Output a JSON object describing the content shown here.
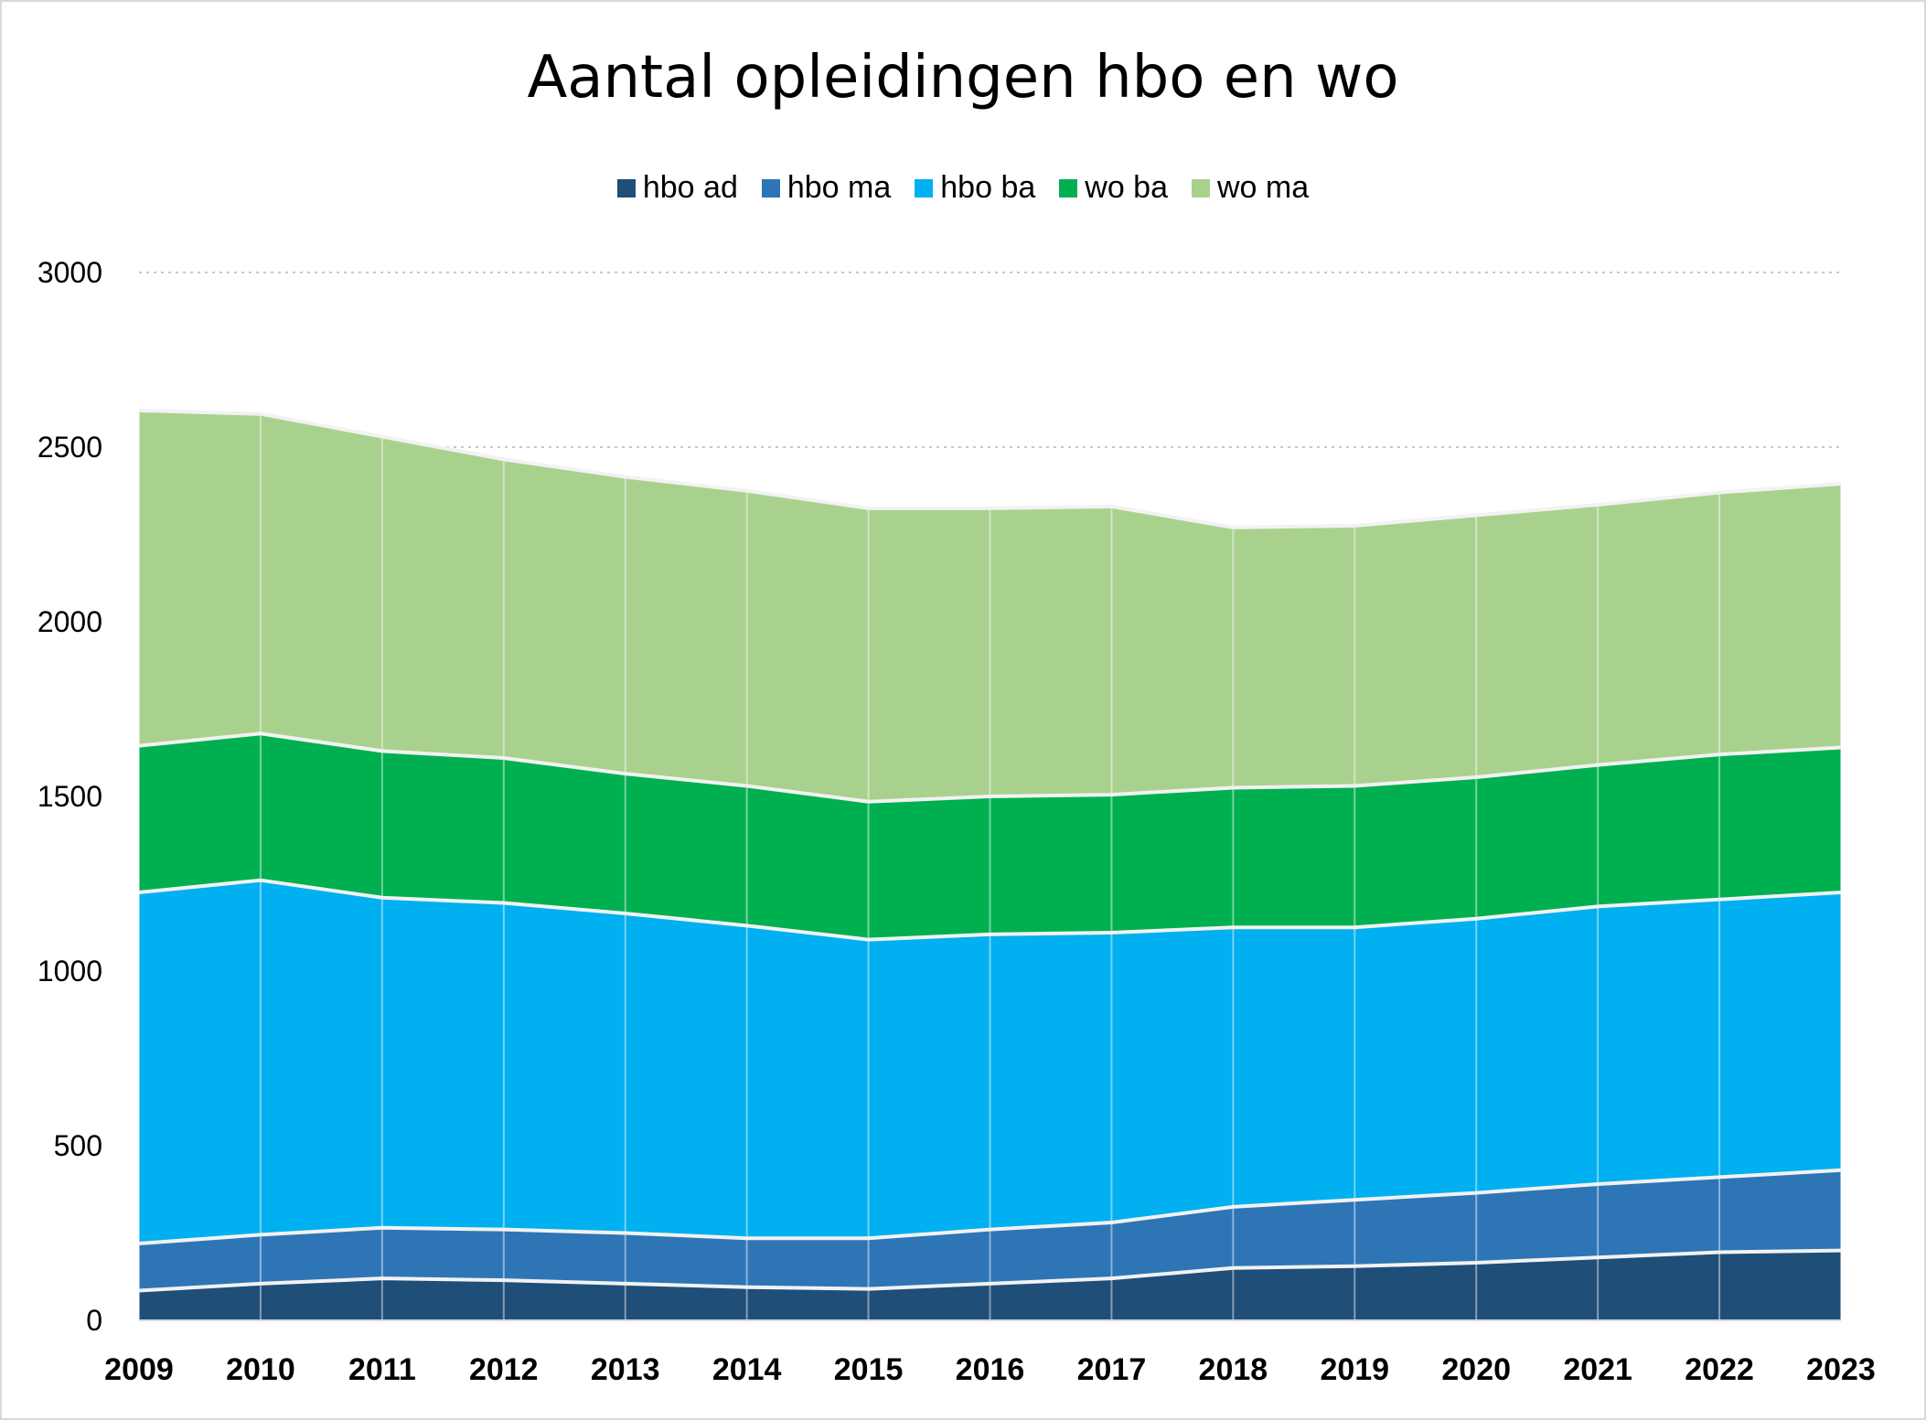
{
  "chart_data": {
    "type": "area",
    "stacked": true,
    "title": "Aantal opleidingen hbo en wo",
    "xlabel": "",
    "ylabel": "",
    "ylim": [
      0,
      3000
    ],
    "yticks": [
      0,
      500,
      1000,
      1500,
      2000,
      2500,
      3000
    ],
    "grid": true,
    "legend_position": "top",
    "categories": [
      "2009",
      "2010",
      "2011",
      "2012",
      "2013",
      "2014",
      "2015",
      "2016",
      "2017",
      "2018",
      "2019",
      "2020",
      "2021",
      "2022",
      "2023"
    ],
    "series": [
      {
        "name": "hbo ad",
        "color": "#1f4e79",
        "values": [
          85,
          105,
          120,
          115,
          105,
          95,
          90,
          105,
          120,
          150,
          155,
          165,
          180,
          195,
          200
        ]
      },
      {
        "name": "hbo ma",
        "color": "#2e75b6",
        "values": [
          135,
          140,
          145,
          145,
          145,
          140,
          145,
          155,
          160,
          175,
          190,
          200,
          210,
          215,
          230
        ]
      },
      {
        "name": "hbo ba",
        "color": "#00b0f0",
        "values": [
          1005,
          1015,
          945,
          935,
          915,
          895,
          855,
          845,
          830,
          800,
          780,
          785,
          795,
          795,
          795
        ]
      },
      {
        "name": "wo ba",
        "color": "#00b050",
        "values": [
          420,
          420,
          420,
          415,
          400,
          400,
          395,
          395,
          395,
          400,
          405,
          405,
          405,
          415,
          415
        ]
      },
      {
        "name": "wo ma",
        "color": "#a9d18e",
        "values": [
          960,
          915,
          900,
          855,
          850,
          845,
          840,
          825,
          825,
          745,
          745,
          750,
          745,
          750,
          755
        ]
      }
    ]
  }
}
